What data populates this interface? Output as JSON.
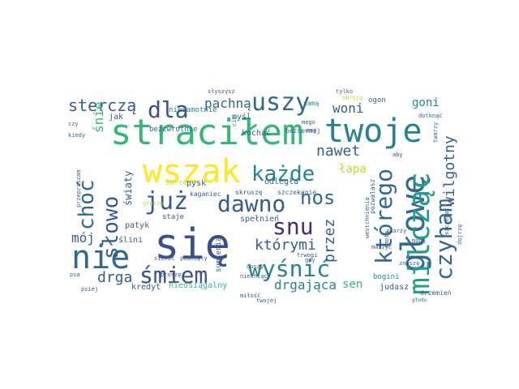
{
  "words": {
    "sie": "się",
    "stracilem": "straciłem",
    "twoje": "twoje",
    "wszak": "wszak",
    "nie": "nie",
    "glowe": "głowę",
    "milczac": "milcząc",
    "juz": "już",
    "dawno": "dawno",
    "kazde": "każde",
    "czyham": "czyham",
    "ktorego": "którego",
    "uszy": "uszy",
    "dla": "dla",
    "slowo": "słowo",
    "chocby": "choć",
    "smiem": "śmiem",
    "wysnic": "wyśnić",
    "snu": "snu",
    "nos": "nos",
    "wilgotny": "wilgotny",
    "sterczą": "sterczą",
    "pachna": "pachną",
    "nawet": "nawet",
    "ktorymi": "którymi",
    "moj": "mój",
    "drga": "drga",
    "drgajaca": "drgająca",
    "przez": "przez",
    "sen": "sen",
    "woni": "woni",
    "goni": "goni",
    "snie": "śnie",
    "swiaty": "światy",
    "lapa": "łapa",
    "jak": "jak",
    "mysl": "myśl",
    "niesamotnie": "niesamotnie",
    "ogon": "ogon",
    "bezzwrotnie": "bezzwrotnie",
    "kochac": "kochać",
    "bezsennej": "bezsennej",
    "pysk": "pysk",
    "odlegla": "odległa",
    "skrusze": "skruszę",
    "szczekanie": "szczekanie",
    "kaganiec": "kaganiec",
    "serce": "serce",
    "staje": "staje",
    "spelnien": "spełnień",
    "patyk": "patyk",
    "slini": "ślini",
    "kredyt": "kredyt",
    "nieosiagalny": "nieosiągalny",
    "judasz": "judasz",
    "bogini": "bogini",
    "sumienia": "sumienia",
    "pozwalasz": "pozwalasz",
    "drzemien": "drzemień",
    "sama": "samą",
    "obroze": "obrożę",
    "slyszysz": "słyszysz",
    "tylko": "tylko",
    "dotknac": "dotknąć",
    "twarzy": "twarzy",
    "gdy": "gdy",
    "czy": "czy",
    "kiedy": "kiedy",
    "cie": "cię",
    "aby": "aby",
    "zdarzy": "zdarzy",
    "mogą": "mogą",
    "znosze": "znoszę",
    "milosc": "miłość",
    "duszy": "duszy",
    "trwogi": "trwogi",
    "niechcacy": "niechcący",
    "przepraszam": "przepraszam",
    "psa": "psa",
    "psiej": "psiej",
    "siersc": "sierść",
    "podniniety": "podnięty",
    "prosze": "proszę",
    "marzyc": "marzyć",
    "mego": "mego",
    "smola": "smołą",
    "szczekac": "szczekać",
    "glosze": "głoszę",
    "twojej": "twojej",
    "wszak2": "mej",
    "dojrzę": "dojrzę",
    "westchnienia": "westchnienia",
    "glodu": "głodu"
  },
  "colors": {
    "navy": "#3b4f8c",
    "indigo": "#482878",
    "purple": "#46327e",
    "blue": "#31688e",
    "steel": "#365c8d",
    "teal": "#26828e",
    "cyan": "#1f9e89",
    "green": "#35b779",
    "lime": "#6ece58",
    "yellow": "#fde725",
    "olive": "#b5de2b"
  }
}
